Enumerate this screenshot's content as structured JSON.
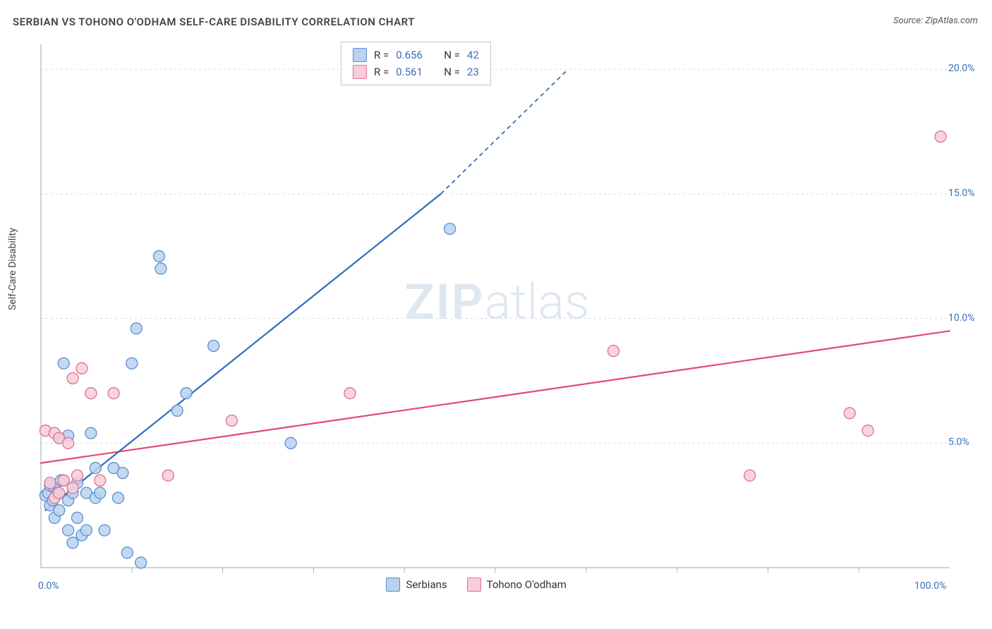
{
  "title": "SERBIAN VS TOHONO O'ODHAM SELF-CARE DISABILITY CORRELATION CHART",
  "source": "Source: ZipAtlas.com",
  "ylabel": "Self-Care Disability",
  "chart": {
    "type": "scatter",
    "xlim": [
      0,
      100
    ],
    "ylim": [
      0,
      21
    ],
    "x_ticks": [
      {
        "value": 0,
        "label": "0.0%"
      },
      {
        "value": 100,
        "label": "100.0%"
      }
    ],
    "y_ticks": [
      {
        "value": 5,
        "label": "5.0%"
      },
      {
        "value": 10,
        "label": "10.0%"
      },
      {
        "value": 15,
        "label": "15.0%"
      },
      {
        "value": 20,
        "label": "20.0%"
      }
    ],
    "grid_color": "#d9d9d9",
    "axis_color": "#b5b5b5",
    "background_color": "#ffffff",
    "tick_label_color": "#3a6fb7",
    "tick_fontsize": 14,
    "series": [
      {
        "name": "Serbians",
        "marker_fill": "#b9d2ee",
        "marker_stroke": "#5a8fce",
        "marker_radius": 8,
        "marker_opacity": 0.85,
        "trend": {
          "stroke": "#2e6bbd",
          "width": 2.2,
          "x1": 0.5,
          "y1": 2.3,
          "x2": 44,
          "y2": 15.0,
          "extend": {
            "x2": 58,
            "y2": 20.0,
            "dash": "6 5"
          }
        },
        "points": [
          {
            "x": 0.5,
            "y": 2.9
          },
          {
            "x": 0.8,
            "y": 3.0
          },
          {
            "x": 1.0,
            "y": 2.5
          },
          {
            "x": 1.0,
            "y": 3.3
          },
          {
            "x": 1.3,
            "y": 2.7
          },
          {
            "x": 1.5,
            "y": 3.2
          },
          {
            "x": 1.5,
            "y": 2.0
          },
          {
            "x": 1.8,
            "y": 3.0
          },
          {
            "x": 2.0,
            "y": 5.2
          },
          {
            "x": 2.0,
            "y": 2.3
          },
          {
            "x": 2.2,
            "y": 3.5
          },
          {
            "x": 2.5,
            "y": 3.5
          },
          {
            "x": 2.5,
            "y": 8.2
          },
          {
            "x": 3.0,
            "y": 2.7
          },
          {
            "x": 3.0,
            "y": 5.3
          },
          {
            "x": 3.0,
            "y": 1.5
          },
          {
            "x": 3.5,
            "y": 3.0
          },
          {
            "x": 3.5,
            "y": 1.0
          },
          {
            "x": 4.0,
            "y": 3.4
          },
          {
            "x": 4.0,
            "y": 2.0
          },
          {
            "x": 4.5,
            "y": 1.3
          },
          {
            "x": 5.0,
            "y": 3.0
          },
          {
            "x": 5.0,
            "y": 1.5
          },
          {
            "x": 5.5,
            "y": 5.4
          },
          {
            "x": 6.0,
            "y": 2.8
          },
          {
            "x": 6.0,
            "y": 4.0
          },
          {
            "x": 6.5,
            "y": 3.0
          },
          {
            "x": 7.0,
            "y": 1.5
          },
          {
            "x": 8.0,
            "y": 4.0
          },
          {
            "x": 8.5,
            "y": 2.8
          },
          {
            "x": 9.0,
            "y": 3.8
          },
          {
            "x": 9.5,
            "y": 0.6
          },
          {
            "x": 10.0,
            "y": 8.2
          },
          {
            "x": 10.5,
            "y": 9.6
          },
          {
            "x": 11.0,
            "y": 0.2
          },
          {
            "x": 13.0,
            "y": 12.5
          },
          {
            "x": 13.2,
            "y": 12.0
          },
          {
            "x": 15.0,
            "y": 6.3
          },
          {
            "x": 16.0,
            "y": 7.0
          },
          {
            "x": 19.0,
            "y": 8.9
          },
          {
            "x": 27.5,
            "y": 5.0
          },
          {
            "x": 45.0,
            "y": 13.6
          }
        ]
      },
      {
        "name": "Tohono O'odham",
        "marker_fill": "#f7cdd8",
        "marker_stroke": "#e06f92",
        "marker_radius": 8,
        "marker_opacity": 0.85,
        "trend": {
          "stroke": "#e24a78",
          "width": 2.2,
          "x1": 0,
          "y1": 4.2,
          "x2": 100,
          "y2": 9.5
        },
        "points": [
          {
            "x": 0.5,
            "y": 5.5
          },
          {
            "x": 1.0,
            "y": 3.4
          },
          {
            "x": 1.5,
            "y": 5.4
          },
          {
            "x": 1.5,
            "y": 2.8
          },
          {
            "x": 2.0,
            "y": 3.0
          },
          {
            "x": 2.0,
            "y": 5.2
          },
          {
            "x": 2.5,
            "y": 3.5
          },
          {
            "x": 3.0,
            "y": 5.0
          },
          {
            "x": 3.5,
            "y": 3.2
          },
          {
            "x": 3.5,
            "y": 7.6
          },
          {
            "x": 4.0,
            "y": 3.7
          },
          {
            "x": 4.5,
            "y": 8.0
          },
          {
            "x": 5.5,
            "y": 7.0
          },
          {
            "x": 6.5,
            "y": 3.5
          },
          {
            "x": 8.0,
            "y": 7.0
          },
          {
            "x": 14.0,
            "y": 3.7
          },
          {
            "x": 21.0,
            "y": 5.9
          },
          {
            "x": 34.0,
            "y": 7.0
          },
          {
            "x": 63.0,
            "y": 8.7
          },
          {
            "x": 78.0,
            "y": 3.7
          },
          {
            "x": 89.0,
            "y": 6.2
          },
          {
            "x": 91.0,
            "y": 5.5
          },
          {
            "x": 99.0,
            "y": 17.3
          }
        ]
      }
    ],
    "legend_top": {
      "rows": [
        {
          "swatch_fill": "#b9d2ee",
          "swatch_stroke": "#5a8fce",
          "r_label": "R =",
          "r_value": "0.656",
          "n_label": "N =",
          "n_value": "42"
        },
        {
          "swatch_fill": "#f7cdd8",
          "swatch_stroke": "#e06f92",
          "r_label": "R =",
          "r_value": "0.561",
          "n_label": "N =",
          "n_value": "23"
        }
      ],
      "label_color": "#333",
      "value_color": "#3a6fb7"
    },
    "legend_bottom": {
      "items": [
        {
          "swatch_fill": "#b9d2ee",
          "swatch_stroke": "#5a8fce",
          "label": "Serbians"
        },
        {
          "swatch_fill": "#f7cdd8",
          "swatch_stroke": "#e06f92",
          "label": "Tohono O'odham"
        }
      ]
    },
    "watermark": {
      "text_bold": "ZIP",
      "text_rest": "atlas",
      "color": "#dfe7f1",
      "fontsize": 70
    }
  }
}
